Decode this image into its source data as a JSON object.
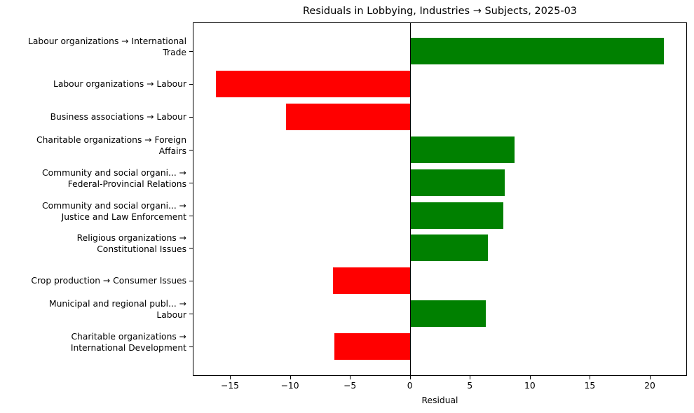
{
  "chart_data": {
    "type": "bar",
    "orientation": "horizontal",
    "title": "Residuals in Lobbying, Industries → Subjects, 2025-03",
    "xlabel": "Residual",
    "ylabel": "",
    "xlim": [
      -18.1,
      23.1
    ],
    "xticks": [
      -15,
      -10,
      -5,
      0,
      5,
      10,
      15,
      20
    ],
    "xtick_labels": [
      "−15",
      "−10",
      "−5",
      "0",
      "5",
      "10",
      "15",
      "20"
    ],
    "grid": false,
    "legend": null,
    "zero_line": true,
    "colors": {
      "positive": "#008000",
      "negative": "#ff0000"
    },
    "categories": [
      "Labour organizations → International\nTrade",
      "Labour organizations → Labour",
      "Business associations → Labour",
      "Charitable organizations → Foreign\nAffairs",
      "Community and social organi... →\nFederal-Provincial Relations",
      "Community and social organi... →\nJustice and Law Enforcement",
      "Religious organizations →\nConstitutional Issues",
      "Crop production → Consumer Issues",
      "Municipal and regional publ... →\nLabour",
      "Charitable organizations →\nInternational Development"
    ],
    "values": [
      21.2,
      -16.2,
      -10.3,
      8.7,
      7.9,
      7.8,
      6.5,
      -6.4,
      6.3,
      -6.3
    ]
  }
}
